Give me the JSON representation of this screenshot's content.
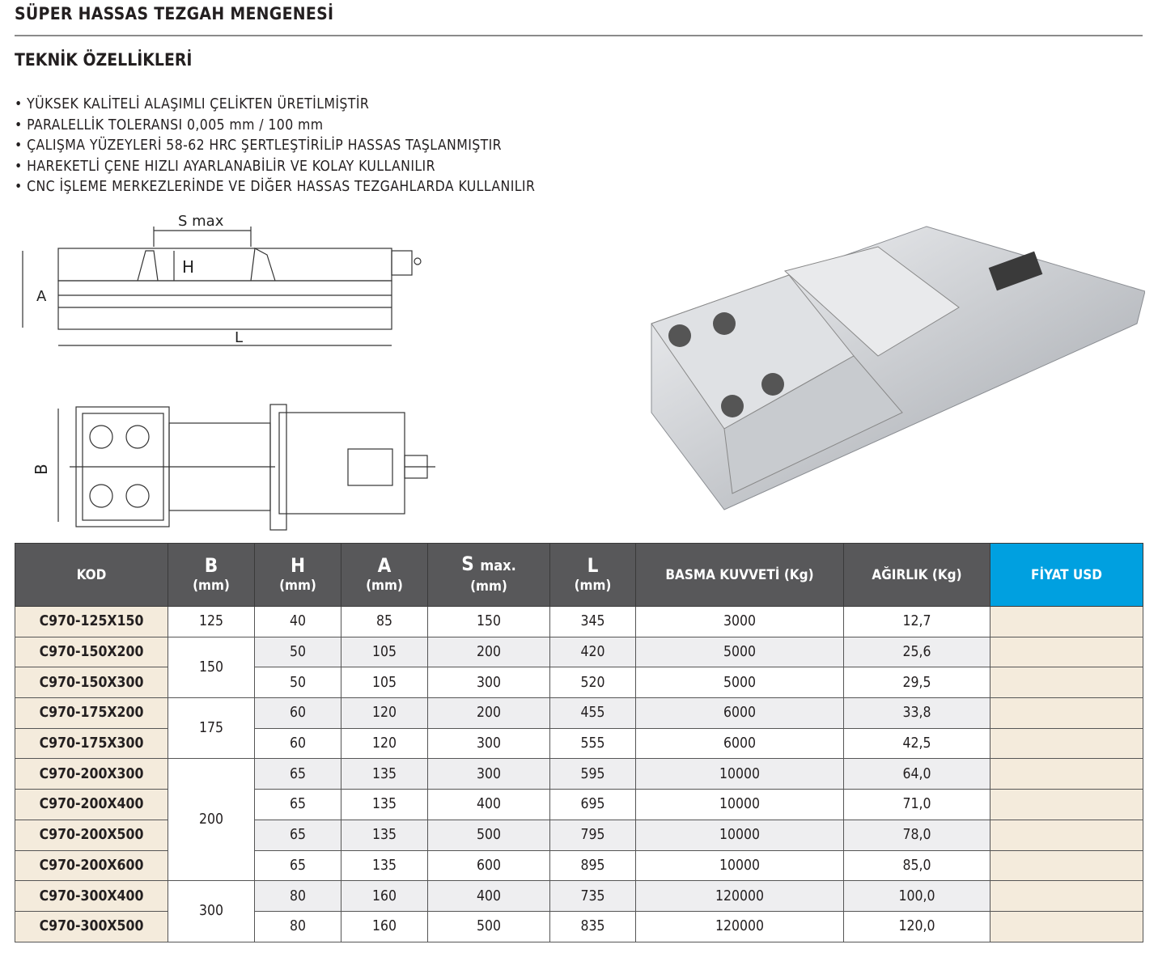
{
  "title": "SÜPER HASSAS TEZGAH MENGENESİ",
  "subtitle": "TEKNİK ÖZELLİKLERİ",
  "features": [
    "YÜKSEK KALİTELİ ALAŞIMLI ÇELİKTEN ÜRETİLMİŞTİR",
    "PARALELLİK TOLERANSI 0,005 mm / 100 mm",
    "ÇALIŞMA YÜZEYLERİ 58-62 HRC ŞERTLEŞTİRİLİP HASSAS TAŞLANMIŞTIR",
    "HAREKETLİ ÇENE HIZLI AYARLANABİLİR VE KOLAY KULLANILIR",
    "CNC İŞLEME MERKEZLERİNDE VE DİĞER HASSAS TEZGAHLARDA KULLANILIR"
  ],
  "drawing": {
    "smax": "S max",
    "h": "H",
    "a": "A",
    "l": "L",
    "b": "B"
  },
  "table": {
    "headers": {
      "kod": "KOD",
      "b": "B",
      "h": "H",
      "a": "A",
      "s": "S",
      "s_suffix": "max.",
      "l": "L",
      "unit": "(mm)",
      "basma": "BASMA KUVVETİ (Kg)",
      "agirlik": "AĞIRLIK (Kg)",
      "fiyat": "FİYAT USD"
    },
    "colors": {
      "header": "#58585a",
      "price_header": "#00a0e0",
      "kod_bg": "#f4ebdc"
    },
    "rows": [
      {
        "kod": "C970-125X150",
        "b": "125",
        "h": "40",
        "a": "85",
        "s": "150",
        "l": "345",
        "basma": "3000",
        "agirlik": "12,7"
      },
      {
        "kod": "C970-150X200",
        "b": "150",
        "h": "50",
        "a": "105",
        "s": "200",
        "l": "420",
        "basma": "5000",
        "agirlik": "25,6"
      },
      {
        "kod": "C970-150X300",
        "b": "",
        "h": "50",
        "a": "105",
        "s": "300",
        "l": "520",
        "basma": "5000",
        "agirlik": "29,5"
      },
      {
        "kod": "C970-175X200",
        "b": "175",
        "h": "60",
        "a": "120",
        "s": "200",
        "l": "455",
        "basma": "6000",
        "agirlik": "33,8"
      },
      {
        "kod": "C970-175X300",
        "b": "",
        "h": "60",
        "a": "120",
        "s": "300",
        "l": "555",
        "basma": "6000",
        "agirlik": "42,5"
      },
      {
        "kod": "C970-200X300",
        "b": "200",
        "h": "65",
        "a": "135",
        "s": "300",
        "l": "595",
        "basma": "10000",
        "agirlik": "64,0"
      },
      {
        "kod": "C970-200X400",
        "b": "",
        "h": "65",
        "a": "135",
        "s": "400",
        "l": "695",
        "basma": "10000",
        "agirlik": "71,0"
      },
      {
        "kod": "C970-200X500",
        "b": "",
        "h": "65",
        "a": "135",
        "s": "500",
        "l": "795",
        "basma": "10000",
        "agirlik": "78,0"
      },
      {
        "kod": "C970-200X600",
        "b": "",
        "h": "65",
        "a": "135",
        "s": "600",
        "l": "895",
        "basma": "10000",
        "agirlik": "85,0"
      },
      {
        "kod": "C970-300X400",
        "b": "300",
        "h": "80",
        "a": "160",
        "s": "400",
        "l": "735",
        "basma": "120000",
        "agirlik": "100,0"
      },
      {
        "kod": "C970-300X500",
        "b": "",
        "h": "80",
        "a": "160",
        "s": "500",
        "l": "835",
        "basma": "120000",
        "agirlik": "120,0"
      }
    ]
  }
}
